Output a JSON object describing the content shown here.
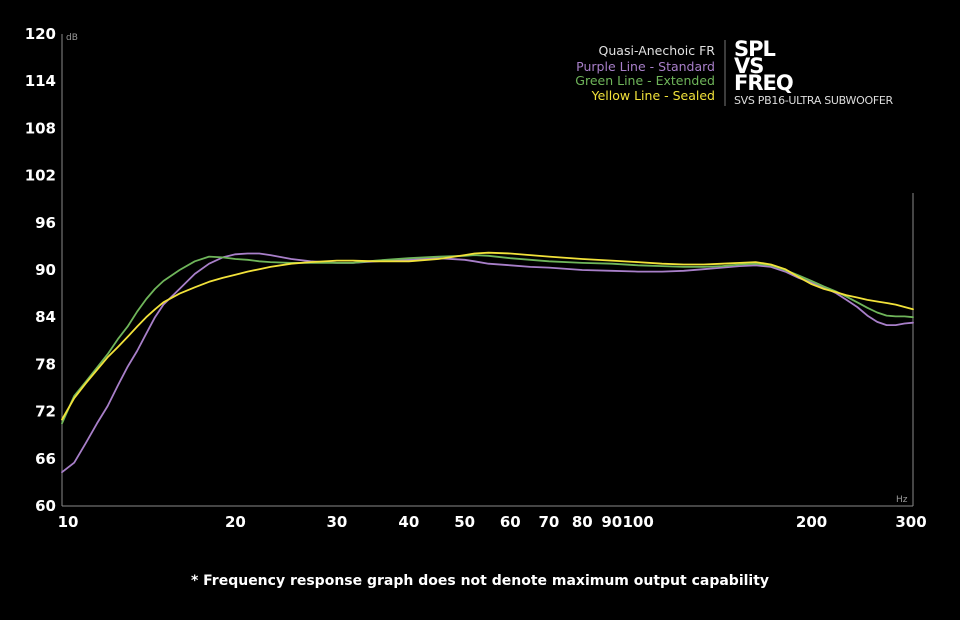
{
  "chart_data": {
    "type": "line",
    "x_scale": "log",
    "xlim": [
      10,
      300
    ],
    "ylim": [
      60,
      120
    ],
    "yticks": [
      60,
      66,
      72,
      78,
      84,
      90,
      96,
      102,
      108,
      114,
      120
    ],
    "xticks": [
      10,
      20,
      30,
      40,
      50,
      60,
      70,
      80,
      90,
      100,
      200,
      300
    ],
    "ylabel": "dB",
    "xlabel": "Hz",
    "grid": false,
    "legend_title": "Quasi-Anechoic FR",
    "legend_position": "top-right",
    "series": [
      {
        "name": "Purple Line - Standard",
        "color": "#a87fc9",
        "points": [
          [
            10,
            64.3
          ],
          [
            10.5,
            65.5
          ],
          [
            11,
            68.0
          ],
          [
            11.5,
            70.5
          ],
          [
            12,
            72.7
          ],
          [
            12.5,
            75.3
          ],
          [
            13,
            77.7
          ],
          [
            13.5,
            79.7
          ],
          [
            14,
            81.9
          ],
          [
            14.5,
            84.0
          ],
          [
            15,
            85.6
          ],
          [
            16,
            87.6
          ],
          [
            17,
            89.5
          ],
          [
            18,
            90.8
          ],
          [
            19,
            91.6
          ],
          [
            20,
            92.0
          ],
          [
            21,
            92.1
          ],
          [
            22,
            92.1
          ],
          [
            23,
            91.9
          ],
          [
            25,
            91.4
          ],
          [
            27,
            91.1
          ],
          [
            30,
            90.9
          ],
          [
            32,
            90.9
          ],
          [
            35,
            91.1
          ],
          [
            40,
            91.3
          ],
          [
            45,
            91.5
          ],
          [
            50,
            91.3
          ],
          [
            52,
            91.1
          ],
          [
            55,
            90.8
          ],
          [
            60,
            90.6
          ],
          [
            65,
            90.4
          ],
          [
            70,
            90.3
          ],
          [
            80,
            90.0
          ],
          [
            90,
            89.9
          ],
          [
            100,
            89.8
          ],
          [
            110,
            89.8
          ],
          [
            120,
            89.9
          ],
          [
            130,
            90.1
          ],
          [
            140,
            90.3
          ],
          [
            150,
            90.5
          ],
          [
            160,
            90.6
          ],
          [
            170,
            90.4
          ],
          [
            180,
            89.8
          ],
          [
            190,
            89.0
          ],
          [
            200,
            88.4
          ],
          [
            210,
            87.8
          ],
          [
            220,
            87.1
          ],
          [
            230,
            86.2
          ],
          [
            240,
            85.3
          ],
          [
            250,
            84.2
          ],
          [
            260,
            83.4
          ],
          [
            270,
            83.0
          ],
          [
            280,
            83.0
          ],
          [
            290,
            83.2
          ],
          [
            300,
            83.3
          ]
        ]
      },
      {
        "name": "Green Line - Extended",
        "color": "#6fb55a",
        "points": [
          [
            10,
            70.5
          ],
          [
            10.5,
            74.0
          ],
          [
            11,
            75.8
          ],
          [
            11.5,
            77.6
          ],
          [
            12,
            79.3
          ],
          [
            12.5,
            81.2
          ],
          [
            13,
            82.8
          ],
          [
            13.5,
            84.7
          ],
          [
            14,
            86.3
          ],
          [
            14.5,
            87.6
          ],
          [
            15,
            88.6
          ],
          [
            16,
            90.0
          ],
          [
            17,
            91.1
          ],
          [
            18,
            91.7
          ],
          [
            19,
            91.6
          ],
          [
            20,
            91.4
          ],
          [
            21,
            91.3
          ],
          [
            22,
            91.1
          ],
          [
            23,
            91.0
          ],
          [
            25,
            90.9
          ],
          [
            27,
            90.9
          ],
          [
            30,
            90.9
          ],
          [
            32,
            90.9
          ],
          [
            35,
            91.2
          ],
          [
            40,
            91.5
          ],
          [
            45,
            91.7
          ],
          [
            50,
            91.8
          ],
          [
            52,
            91.9
          ],
          [
            55,
            91.8
          ],
          [
            60,
            91.5
          ],
          [
            65,
            91.3
          ],
          [
            70,
            91.1
          ],
          [
            80,
            90.9
          ],
          [
            90,
            90.8
          ],
          [
            100,
            90.6
          ],
          [
            110,
            90.5
          ],
          [
            120,
            90.4
          ],
          [
            130,
            90.4
          ],
          [
            140,
            90.5
          ],
          [
            150,
            90.7
          ],
          [
            160,
            90.8
          ],
          [
            170,
            90.6
          ],
          [
            180,
            90.0
          ],
          [
            190,
            89.3
          ],
          [
            200,
            88.6
          ],
          [
            210,
            87.9
          ],
          [
            220,
            87.3
          ],
          [
            230,
            86.6
          ],
          [
            240,
            85.9
          ],
          [
            250,
            85.2
          ],
          [
            260,
            84.6
          ],
          [
            270,
            84.2
          ],
          [
            280,
            84.1
          ],
          [
            290,
            84.1
          ],
          [
            300,
            84.0
          ]
        ]
      },
      {
        "name": "Yellow Line - Sealed",
        "color": "#f2e23a",
        "points": [
          [
            10,
            71.0
          ],
          [
            10.5,
            73.7
          ],
          [
            11,
            75.6
          ],
          [
            11.5,
            77.3
          ],
          [
            12,
            78.9
          ],
          [
            12.5,
            80.2
          ],
          [
            13,
            81.5
          ],
          [
            13.5,
            82.8
          ],
          [
            14,
            84.0
          ],
          [
            14.5,
            85.0
          ],
          [
            15,
            85.9
          ],
          [
            16,
            87.0
          ],
          [
            17,
            87.8
          ],
          [
            18,
            88.5
          ],
          [
            19,
            89.0
          ],
          [
            20,
            89.4
          ],
          [
            21,
            89.8
          ],
          [
            22,
            90.1
          ],
          [
            23,
            90.4
          ],
          [
            25,
            90.8
          ],
          [
            27,
            91.0
          ],
          [
            30,
            91.2
          ],
          [
            32,
            91.2
          ],
          [
            35,
            91.1
          ],
          [
            40,
            91.1
          ],
          [
            45,
            91.4
          ],
          [
            50,
            91.9
          ],
          [
            52,
            92.1
          ],
          [
            55,
            92.2
          ],
          [
            60,
            92.1
          ],
          [
            65,
            91.9
          ],
          [
            70,
            91.7
          ],
          [
            80,
            91.4
          ],
          [
            90,
            91.2
          ],
          [
            100,
            91.0
          ],
          [
            110,
            90.8
          ],
          [
            120,
            90.7
          ],
          [
            130,
            90.7
          ],
          [
            140,
            90.8
          ],
          [
            150,
            90.9
          ],
          [
            160,
            91.0
          ],
          [
            170,
            90.7
          ],
          [
            180,
            90.1
          ],
          [
            190,
            89.1
          ],
          [
            200,
            88.2
          ],
          [
            210,
            87.6
          ],
          [
            220,
            87.2
          ],
          [
            230,
            86.8
          ],
          [
            240,
            86.5
          ],
          [
            250,
            86.2
          ],
          [
            260,
            86.0
          ],
          [
            270,
            85.8
          ],
          [
            280,
            85.6
          ],
          [
            290,
            85.3
          ],
          [
            300,
            85.0
          ]
        ]
      }
    ]
  },
  "brand": {
    "line1": "SPL",
    "line2": "VS",
    "line3": "FREQ",
    "product": "SVS PB16-ULTRA SUBWOOFER"
  },
  "footnote": "* Frequency response graph does not denote maximum output capability",
  "colors": {
    "background": "#000000",
    "axis": "#8a8a8a",
    "legend_title": "#e0e0e0"
  }
}
